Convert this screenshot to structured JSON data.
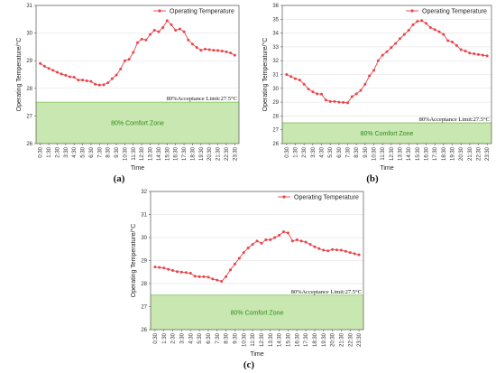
{
  "colors": {
    "series": "#e8454a",
    "zone_fill": "#c9e7b0",
    "zone_text": "#2e8b1e"
  },
  "x_categories": [
    "0:30",
    "1:30",
    "2:30",
    "3:30",
    "4:30",
    "5:30",
    "6:30",
    "7:30",
    "8:30",
    "9:30",
    "10:30",
    "11:30",
    "12:30",
    "13:30",
    "14:30",
    "15:30",
    "16:30",
    "17:30",
    "18:30",
    "19:30",
    "20:30",
    "21:30",
    "22:30",
    "23:30"
  ],
  "chart_data": [
    {
      "type": "line",
      "panel_label": "(a)",
      "xlabel": "Time",
      "ylabel": "Operating Temperature/°C",
      "ylim": [
        26,
        31
      ],
      "yticks": [
        26,
        27,
        28,
        29,
        30,
        31
      ],
      "series": [
        {
          "name": "Operating Temperature",
          "x": [
            0.5,
            1,
            1.5,
            2,
            2.5,
            3,
            3.5,
            4,
            4.5,
            5,
            5.5,
            6,
            6.5,
            7,
            7.5,
            8,
            8.5,
            9,
            9.5,
            10,
            10.5,
            11,
            11.5,
            12,
            12.5,
            13,
            13.5,
            14,
            14.5,
            15,
            15.5,
            16,
            16.5,
            17,
            17.5,
            18,
            18.5,
            19,
            19.5,
            20,
            20.5,
            21,
            21.5,
            22,
            22.5,
            23,
            23.5
          ],
          "y": [
            28.9,
            28.8,
            28.72,
            28.65,
            28.58,
            28.52,
            28.47,
            28.42,
            28.4,
            28.3,
            28.3,
            28.27,
            28.25,
            28.15,
            28.12,
            28.13,
            28.2,
            28.35,
            28.48,
            28.7,
            29.0,
            29.05,
            29.3,
            29.65,
            29.78,
            29.75,
            29.95,
            30.1,
            30.05,
            30.2,
            30.45,
            30.3,
            30.1,
            30.15,
            30.05,
            29.75,
            29.6,
            29.48,
            29.38,
            29.42,
            29.4,
            29.38,
            29.37,
            29.35,
            29.32,
            29.28,
            29.2
          ]
        }
      ],
      "threshold": {
        "value": 27.5,
        "label": "80%Acceptance Limit:27.5°C"
      },
      "zone": {
        "from": 26,
        "to": 27.5,
        "label": "80% Comfort Zone"
      },
      "legend": "top-right"
    },
    {
      "type": "line",
      "panel_label": "(b)",
      "xlabel": "Time",
      "ylabel": "Operating Temperature/°C",
      "ylim": [
        26,
        36
      ],
      "yticks": [
        26,
        27,
        28,
        29,
        30,
        31,
        32,
        33,
        34,
        35,
        36
      ],
      "series": [
        {
          "name": "Operating Temperature",
          "x": [
            0.5,
            1,
            1.5,
            2,
            2.5,
            3,
            3.5,
            4,
            4.5,
            5,
            5.5,
            6,
            6.5,
            7,
            7.5,
            8,
            8.5,
            9,
            9.5,
            10,
            10.5,
            11,
            11.5,
            12,
            12.5,
            13,
            13.5,
            14,
            14.5,
            15,
            15.5,
            16,
            16.5,
            17,
            17.5,
            18,
            18.5,
            19,
            19.5,
            20,
            20.5,
            21,
            21.5,
            22,
            22.5,
            23,
            23.5
          ],
          "y": [
            31.0,
            30.85,
            30.7,
            30.6,
            30.3,
            29.95,
            29.75,
            29.6,
            29.58,
            29.15,
            29.05,
            29.05,
            29.0,
            28.98,
            28.95,
            29.4,
            29.6,
            29.85,
            30.3,
            30.9,
            31.3,
            32.0,
            32.4,
            32.65,
            32.95,
            33.25,
            33.6,
            33.9,
            34.2,
            34.6,
            34.85,
            34.9,
            34.7,
            34.4,
            34.25,
            34.1,
            33.9,
            33.45,
            33.35,
            33.1,
            32.8,
            32.7,
            32.55,
            32.5,
            32.45,
            32.4,
            32.35
          ]
        }
      ],
      "threshold": {
        "value": 27.5,
        "label": "80%Acceptance Limit:27.5°C"
      },
      "zone": {
        "from": 26,
        "to": 27.5,
        "label": "80% Comfort Zone"
      },
      "legend": "top-right"
    },
    {
      "type": "line",
      "panel_label": "(c)",
      "xlabel": "Time",
      "ylabel": "Operating Temperature/°C",
      "ylim": [
        26,
        32
      ],
      "yticks": [
        26,
        27,
        28,
        29,
        30,
        31,
        32
      ],
      "series": [
        {
          "name": "Operating Temperature",
          "x": [
            0.5,
            1,
            1.5,
            2,
            2.5,
            3,
            3.5,
            4,
            4.5,
            5,
            5.5,
            6,
            6.5,
            7,
            7.5,
            8,
            8.5,
            9,
            9.5,
            10,
            10.5,
            11,
            11.5,
            12,
            12.5,
            13,
            13.5,
            14,
            14.5,
            15,
            15.5,
            16,
            16.5,
            17,
            17.5,
            18,
            18.5,
            19,
            19.5,
            20,
            20.5,
            21,
            21.5,
            22,
            22.5,
            23,
            23.5
          ],
          "y": [
            28.72,
            28.7,
            28.68,
            28.62,
            28.57,
            28.52,
            28.5,
            28.48,
            28.45,
            28.32,
            28.3,
            28.3,
            28.28,
            28.2,
            28.15,
            28.1,
            28.3,
            28.6,
            28.85,
            29.1,
            29.35,
            29.55,
            29.7,
            29.85,
            29.75,
            29.9,
            29.9,
            30.0,
            30.1,
            30.25,
            30.2,
            29.85,
            29.9,
            29.85,
            29.8,
            29.7,
            29.6,
            29.52,
            29.45,
            29.42,
            29.48,
            29.46,
            29.45,
            29.4,
            29.35,
            29.3,
            29.25
          ]
        }
      ],
      "threshold": {
        "value": 27.5,
        "label": "80%Acceptance Limit:27.5°C"
      },
      "zone": {
        "from": 26,
        "to": 27.5,
        "label": "80% Comfort Zone"
      },
      "legend": "top-right"
    }
  ]
}
